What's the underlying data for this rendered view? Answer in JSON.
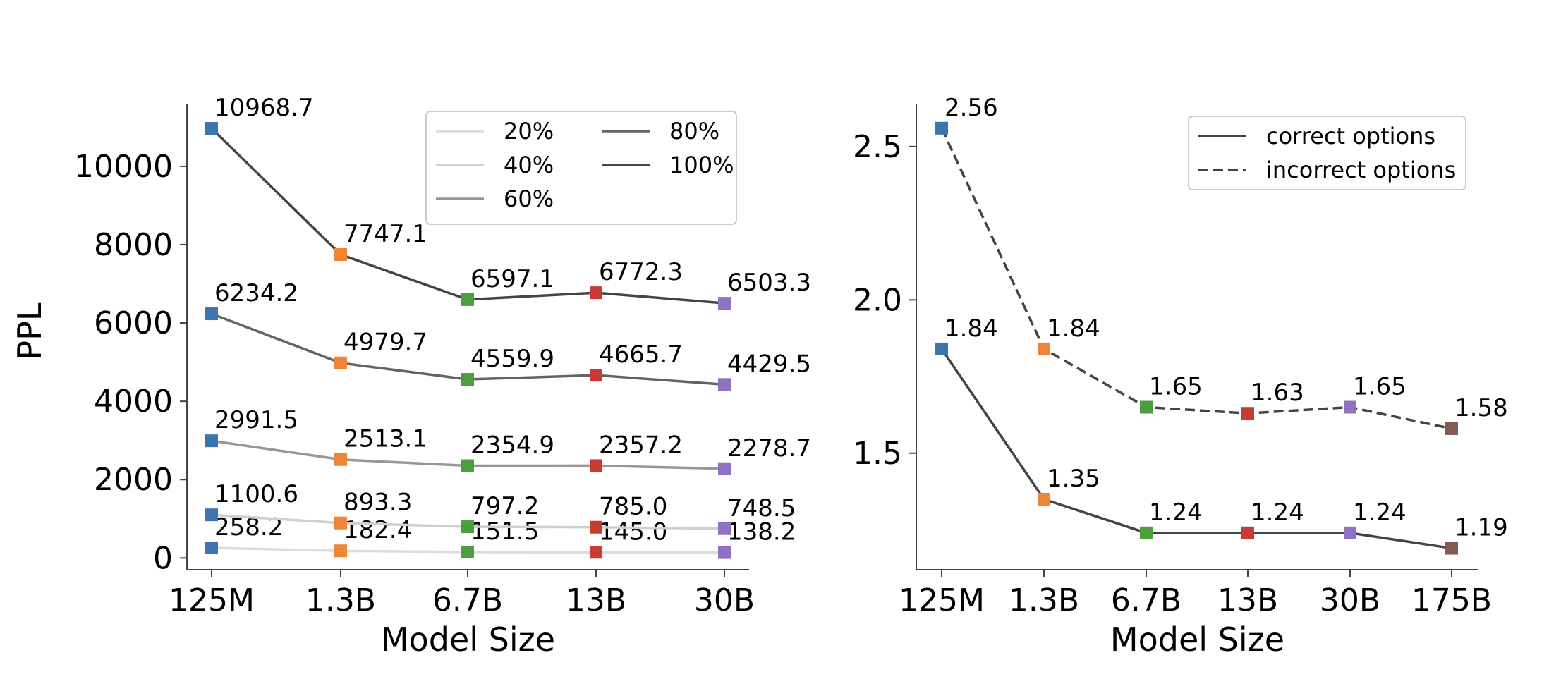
{
  "chart_data": [
    {
      "type": "line",
      "xlabel": "Model Size",
      "ylabel": "PPL",
      "categories": [
        "125M",
        "1.3B",
        "6.7B",
        "13B",
        "30B"
      ],
      "yticks": [
        0,
        2000,
        4000,
        6000,
        8000,
        10000
      ],
      "ylim": [
        -300,
        11600
      ],
      "legend_placement": "upper-center",
      "legend_ncol": 2,
      "series": [
        {
          "name": "20%",
          "color": "#dcdcdc",
          "values": [
            258.2,
            182.4,
            151.5,
            145.0,
            138.2
          ],
          "labels": [
            "258.2",
            "182.4",
            "151.5",
            "145.0",
            "138.2"
          ]
        },
        {
          "name": "40%",
          "color": "#cfcfcf",
          "values": [
            1100.6,
            893.3,
            797.2,
            785.0,
            748.5
          ],
          "labels": [
            "1100.6",
            "893.3",
            "797.2",
            "785.0",
            "748.5"
          ]
        },
        {
          "name": "60%",
          "color": "#979797",
          "values": [
            2991.5,
            2513.1,
            2354.9,
            2357.2,
            2278.7
          ],
          "labels": [
            "2991.5",
            "2513.1",
            "2354.9",
            "2357.2",
            "2278.7"
          ]
        },
        {
          "name": "80%",
          "color": "#646464",
          "values": [
            6234.2,
            4979.7,
            4559.9,
            4665.7,
            4429.5
          ],
          "labels": [
            "6234.2",
            "4979.7",
            "4559.9",
            "4665.7",
            "4429.5"
          ]
        },
        {
          "name": "100%",
          "color": "#444444",
          "values": [
            10968.7,
            7747.1,
            6597.1,
            6772.3,
            6503.3
          ],
          "labels": [
            "10968.7",
            "7747.1",
            "6597.1",
            "6772.3",
            "6503.3"
          ]
        }
      ]
    },
    {
      "type": "line",
      "xlabel": "Model Size",
      "ylabel": "",
      "categories": [
        "125M",
        "1.3B",
        "6.7B",
        "13B",
        "30B",
        "175B"
      ],
      "yticks": [
        1.5,
        2.0,
        2.5
      ],
      "ytick_labels": [
        "1.5",
        "2.0",
        "2.5"
      ],
      "ylim": [
        1.12,
        2.64
      ],
      "legend_placement": "upper-right",
      "series": [
        {
          "name": "correct options",
          "color": "#444444",
          "dash": "solid",
          "values": [
            1.84,
            1.35,
            1.24,
            1.24,
            1.24,
            1.19
          ],
          "labels": [
            "1.84",
            "1.35",
            "1.24",
            "1.24",
            "1.24",
            "1.19"
          ]
        },
        {
          "name": "incorrect options",
          "color": "#444444",
          "dash": "dashed",
          "values": [
            2.56,
            1.84,
            1.65,
            1.63,
            1.65,
            1.58
          ],
          "labels": [
            "2.56",
            "1.84",
            "1.65",
            "1.63",
            "1.65",
            "1.58"
          ]
        }
      ]
    }
  ],
  "marker_colors": [
    "#3a75b0",
    "#ef8636",
    "#4c9e3e",
    "#c93a33",
    "#9271c1",
    "#845b52"
  ]
}
